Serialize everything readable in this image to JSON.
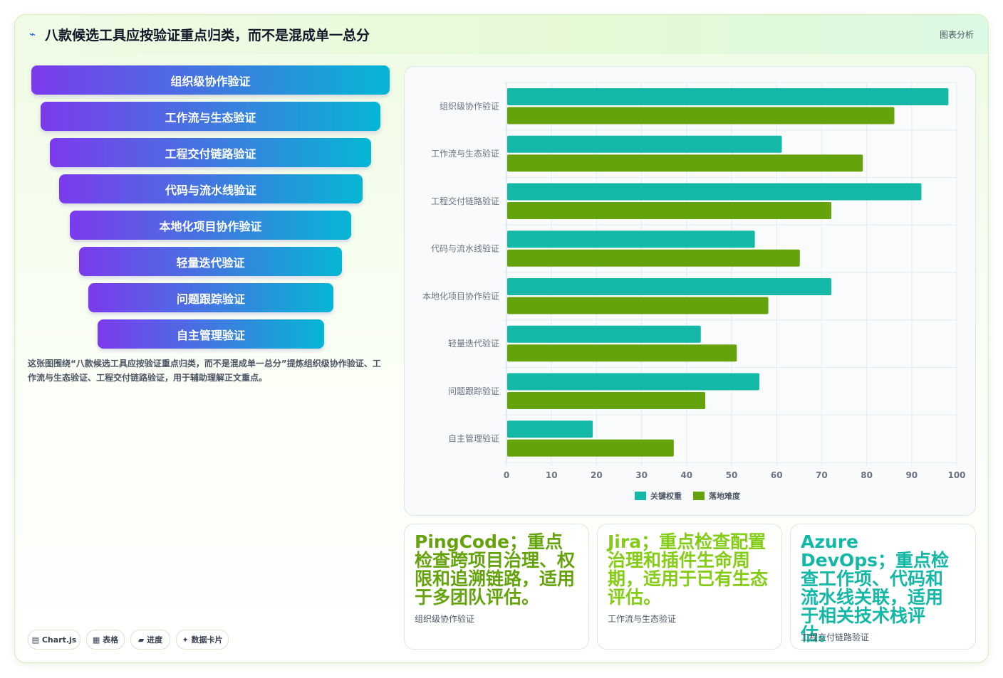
{
  "header": {
    "icon": "wave-icon",
    "title": "八款候选工具应按验证重点归类，而不是混成单一总分",
    "tag": "图表分析"
  },
  "funnel": {
    "items": [
      "组织级协作验证",
      "工作流与生态验证",
      "工程交付链路验证",
      "代码与流水线验证",
      "本地化项目协作验证",
      "轻量迭代验证",
      "问题跟踪验证",
      "自主管理验证"
    ],
    "gradient": [
      "#7c3aed",
      "#06b6d4"
    ]
  },
  "description": "这张图围绕“八款候选工具应按验证重点归类，而不是混成单一总分”提炼组织级协作验证、工作流与生态验证、工程交付链路验证，用于辅助理解正文重点。",
  "pills": [
    "▤ Chart.js",
    "▦ 表格",
    "▰ 进度",
    "✦ 数据卡片"
  ],
  "chart_data": {
    "type": "bar",
    "orientation": "horizontal",
    "categories": [
      "组织级协作验证",
      "工作流与生态验证",
      "工程交付链路验证",
      "代码与流水线验证",
      "本地化项目协作验证",
      "轻量迭代验证",
      "问题跟踪验证",
      "自主管理验证"
    ],
    "series": [
      {
        "name": "关键权重",
        "color": "#14b8a6",
        "values": [
          98,
          61,
          92,
          55,
          72,
          43,
          56,
          19
        ]
      },
      {
        "name": "落地难度",
        "color": "#65a30d",
        "values": [
          86,
          79,
          72,
          65,
          58,
          51,
          44,
          37
        ]
      }
    ],
    "xlim": [
      0,
      100
    ],
    "xticks": [
      0,
      10,
      20,
      30,
      40,
      50,
      60,
      70,
      80,
      90,
      100
    ],
    "grid": true,
    "legend_position": "bottom"
  },
  "kpis": [
    {
      "main": "PingCode；重点检查跨项目治理、权限和追溯链路，适用于多团队评估。",
      "sub": "组织级协作验证",
      "color": "#65a30d"
    },
    {
      "main": "Jira；重点检查配置治理和插件生命周期，适用于已有生态评估。",
      "sub": "工作流与生态验证",
      "color": "#84cc16"
    },
    {
      "main": "Azure DevOps；重点检查工作项、代码和流水线关联，适用于相关技术栈评估。",
      "sub": "工程交付链路验证",
      "color": "#14b8a6"
    }
  ]
}
